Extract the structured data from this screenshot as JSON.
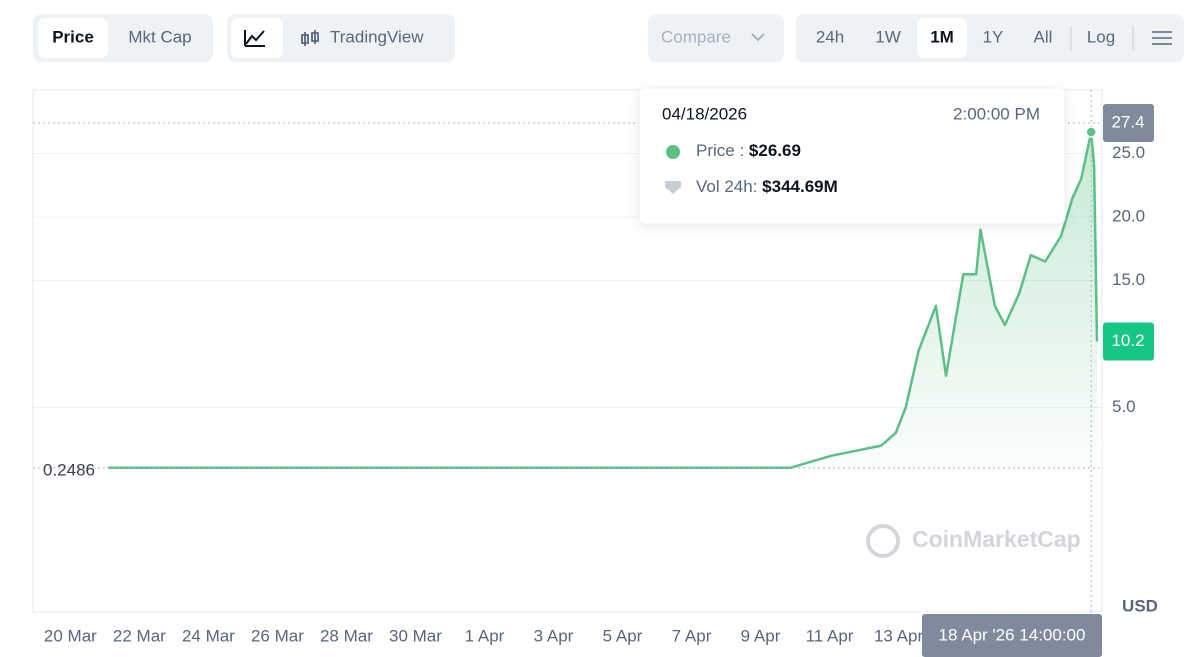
{
  "toolbar": {
    "price": "Price",
    "mkt_cap": "Mkt Cap",
    "tradingview": "TradingView",
    "compare": "Compare",
    "ranges": [
      "24h",
      "1W",
      "1M",
      "1Y",
      "All"
    ],
    "active_range": 2,
    "log": "Log"
  },
  "tooltip": {
    "date": "04/18/2026",
    "time": "2:00:00 PM",
    "price_label": "Price : ",
    "price": "$26.69",
    "vol_label": "Vol 24h: ",
    "vol": "$344.69M"
  },
  "watermark": "CoinMarketCap",
  "crosshair_label": "18 Apr '26 14:00:00",
  "chart_data": {
    "type": "line",
    "y_unit": "USD",
    "color": "#5ac085",
    "grid": true,
    "x": [
      "2026-03-21T02:00",
      "2026-03-31T00:00",
      "2026-04-09T21:00",
      "2026-04-10T04:00",
      "2026-04-11T01:00",
      "2026-04-12T12:00",
      "2026-04-12T22:00",
      "2026-04-13T05:00",
      "2026-04-13T14:00",
      "2026-04-14T02:00",
      "2026-04-14T09:00",
      "2026-04-14T21:00",
      "2026-04-15T06:00",
      "2026-04-15T09:00",
      "2026-04-15T19:00",
      "2026-04-16T02:00",
      "2026-04-16T12:00",
      "2026-04-16T20:00",
      "2026-04-17T06:00",
      "2026-04-17T17:00",
      "2026-04-18T01:00",
      "2026-04-18T07:00",
      "2026-04-18T14:00",
      "2026-04-18T16:00",
      "2026-04-18T18:00"
    ],
    "values": [
      0.25,
      0.25,
      0.26,
      0.5,
      1.2,
      2.0,
      3.0,
      5.0,
      9.5,
      13.0,
      7.5,
      15.5,
      15.5,
      19.0,
      13.0,
      11.5,
      14.0,
      17.0,
      16.5,
      18.5,
      21.5,
      23.0,
      26.69,
      24.0,
      10.2
    ],
    "xlim": [
      "2026-03-18T22:00",
      "2026-04-18T21:30"
    ],
    "xticks": [
      {
        "value": "2026-03-20T00:00",
        "label": "20 Mar"
      },
      {
        "value": "2026-03-22T00:00",
        "label": "22 Mar"
      },
      {
        "value": "2026-03-24T00:00",
        "label": "24 Mar"
      },
      {
        "value": "2026-03-26T00:00",
        "label": "26 Mar"
      },
      {
        "value": "2026-03-28T00:00",
        "label": "28 Mar"
      },
      {
        "value": "2026-03-30T00:00",
        "label": "30 Mar"
      },
      {
        "value": "2026-04-01T00:00",
        "label": "1 Apr"
      },
      {
        "value": "2026-04-03T00:00",
        "label": "3 Apr"
      },
      {
        "value": "2026-04-05T00:00",
        "label": "5 Apr"
      },
      {
        "value": "2026-04-07T00:00",
        "label": "7 Apr"
      },
      {
        "value": "2026-04-09T00:00",
        "label": "9 Apr"
      },
      {
        "value": "2026-04-11T00:00",
        "label": "11 Apr"
      },
      {
        "value": "2026-04-13T00:00",
        "label": "13 Apr"
      }
    ],
    "ylim": [
      -11.1,
      30
    ],
    "yticks": [
      {
        "value": 5,
        "label": "5.0"
      },
      {
        "value": 15,
        "label": "15.0"
      },
      {
        "value": 20,
        "label": "20.0"
      },
      {
        "value": 25,
        "label": "25.0"
      }
    ],
    "high": 27.4,
    "last": 10.2,
    "crosshair_y": 0.2486
  }
}
